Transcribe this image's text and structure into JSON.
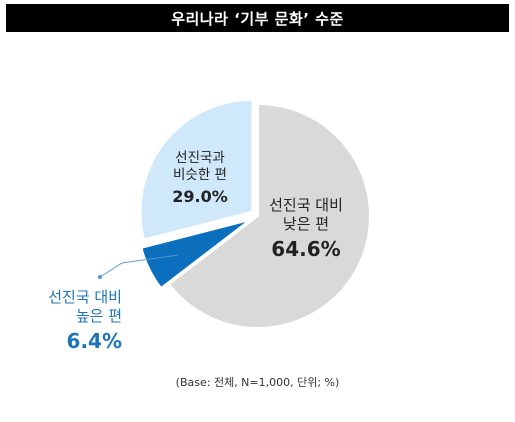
{
  "title": "우리나라 ‘기부 문화’ 수준",
  "footnote": "(Base: 전체, N=1,000, 단위; %)",
  "chart_data": {
    "type": "pie",
    "title": "우리나라 ‘기부 문화’ 수준",
    "slices": [
      {
        "label": "선진국 대비 낮은 편",
        "label_lines": [
          "선진국 대비",
          "낮은 편"
        ],
        "value": 64.6,
        "display": "64.6%",
        "color": "#d9d9d9"
      },
      {
        "label": "선진국 대비 높은 편",
        "label_lines": [
          "선진국 대비",
          "높은 편"
        ],
        "value": 6.4,
        "display": "6.4%",
        "color": "#0b6fbd",
        "exploded": true
      },
      {
        "label": "선진국과 비슷한 편",
        "label_lines": [
          "선진국과",
          "비슷한 편"
        ],
        "value": 29.0,
        "display": "29.0%",
        "color": "#cfe9fb",
        "exploded": true
      }
    ],
    "unit": "%",
    "legend": "none"
  }
}
